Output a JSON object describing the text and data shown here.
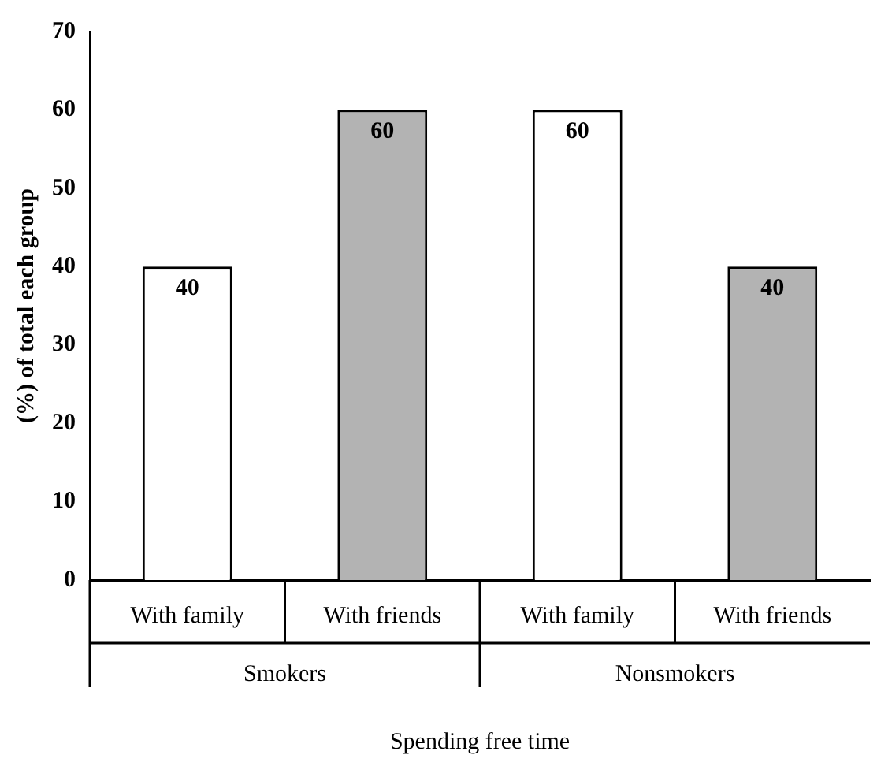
{
  "chart_data": {
    "type": "bar",
    "xlabel": "Spending free time",
    "ylabel": "(%) of total each group",
    "categories": [
      "With family",
      "With friends",
      "With family",
      "With friends"
    ],
    "values": [
      40,
      60,
      60,
      40
    ],
    "colors": [
      "#ffffff",
      "#b3b3b3",
      "#ffffff",
      "#b3b3b3"
    ],
    "ylim": [
      0,
      70
    ],
    "yticks": [
      0,
      10,
      20,
      30,
      40,
      50,
      60,
      70
    ],
    "grid": false,
    "legend": false,
    "data_labels": true,
    "annotations": [
      "Smokers",
      "Nonsmokers"
    ]
  }
}
